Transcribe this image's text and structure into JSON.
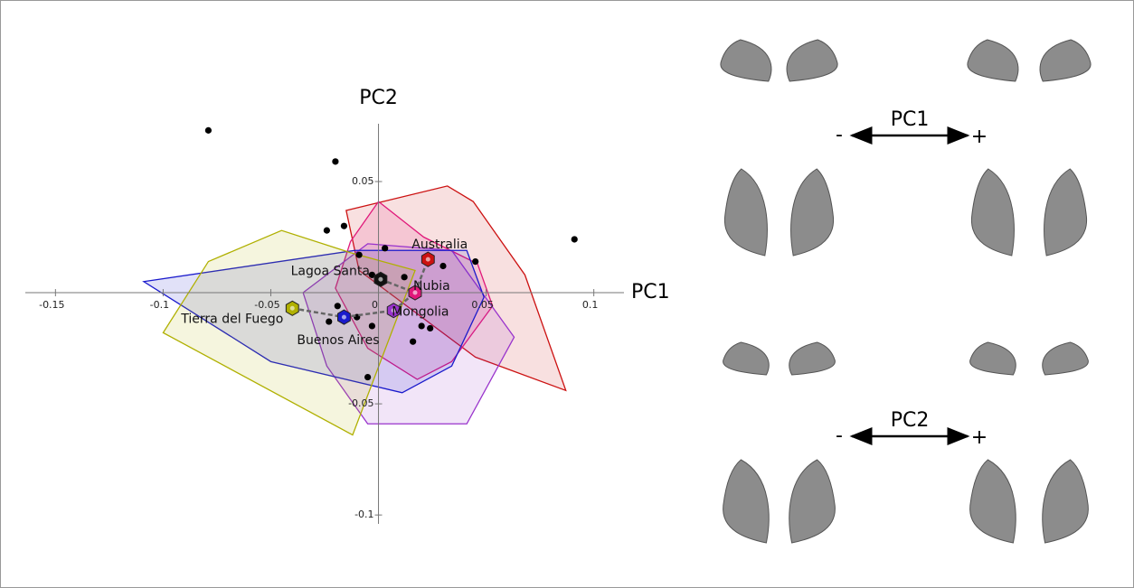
{
  "chart_data": {
    "type": "scatter",
    "x_label": "PC1",
    "y_label": "PC2",
    "xlim": [
      -0.164,
      0.114
    ],
    "ylim": [
      -0.104,
      0.076
    ],
    "xticks": [
      -0.15,
      -0.1,
      -0.05,
      0,
      0.05,
      0.1
    ],
    "yticks": [
      0.05,
      -0.05,
      -0.1
    ],
    "points": {
      "color": "#000000",
      "x": [
        -0.079,
        -0.02,
        0.091,
        -0.016,
        -0.024,
        -0.009,
        0.003,
        0.03,
        0.045,
        -0.003,
        0.012,
        -0.023,
        -0.019,
        -0.01,
        -0.003,
        0.02,
        0.024,
        0.016,
        -0.005
      ],
      "y": [
        0.073,
        0.059,
        0.024,
        0.03,
        0.028,
        0.017,
        0.02,
        0.012,
        0.014,
        0.008,
        0.007,
        -0.013,
        -0.006,
        -0.011,
        -0.015,
        -0.015,
        -0.016,
        -0.022,
        -0.038
      ]
    },
    "groups": [
      {
        "name": "Australia",
        "color": "#cc1111",
        "mean_x": 0.023,
        "mean_y": 0.015,
        "hull_x": [
          -0.015,
          0.032,
          0.044,
          0.068,
          0.087,
          0.045,
          -0.009
        ],
        "hull_y": [
          0.037,
          0.048,
          0.041,
          0.008,
          -0.044,
          -0.029,
          0.01
        ]
      },
      {
        "name": "Lagoa Santa",
        "color": "#111111",
        "mean_x": 0.001,
        "mean_y": 0.006,
        "hull_x": [],
        "hull_y": []
      },
      {
        "name": "Nubia",
        "color": "#e0187a",
        "mean_x": 0.017,
        "mean_y": 0.0,
        "hull_x": [
          0.0,
          0.021,
          0.046,
          0.053,
          0.034,
          0.018,
          -0.005,
          -0.02,
          -0.013
        ],
        "hull_y": [
          0.041,
          0.025,
          0.013,
          -0.006,
          -0.031,
          -0.039,
          -0.025,
          0.002,
          0.023
        ]
      },
      {
        "name": "Mongolia",
        "color": "#9933cc",
        "mean_x": 0.007,
        "mean_y": -0.008,
        "hull_x": [
          -0.005,
          0.034,
          0.063,
          0.041,
          -0.005,
          -0.024,
          -0.035
        ],
        "hull_y": [
          0.022,
          0.019,
          -0.02,
          -0.059,
          -0.059,
          -0.033,
          0.0
        ]
      },
      {
        "name": "Buenos Aires",
        "color": "#1a1acc",
        "mean_x": -0.016,
        "mean_y": -0.011,
        "hull_x": [
          -0.109,
          -0.011,
          0.041,
          0.049,
          0.034,
          0.011,
          -0.05
        ],
        "hull_y": [
          0.005,
          0.019,
          0.019,
          -0.002,
          -0.033,
          -0.045,
          -0.031
        ]
      },
      {
        "name": "Tierra del Fuego",
        "color": "#b0b000",
        "mean_x": -0.04,
        "mean_y": -0.007,
        "hull_x": [
          -0.079,
          -0.045,
          -0.013,
          0.017,
          -0.012,
          -0.1
        ],
        "hull_y": [
          0.014,
          0.028,
          0.018,
          0.01,
          -0.064,
          -0.018
        ]
      }
    ],
    "links": [
      [
        5,
        4
      ],
      [
        4,
        3
      ],
      [
        3,
        2
      ],
      [
        2,
        0
      ],
      [
        1,
        2
      ]
    ]
  },
  "shape_panels": [
    {
      "axis_label": "PC1",
      "minus": "-",
      "plus": "+"
    },
    {
      "axis_label": "PC2",
      "minus": "-",
      "plus": "+"
    }
  ]
}
